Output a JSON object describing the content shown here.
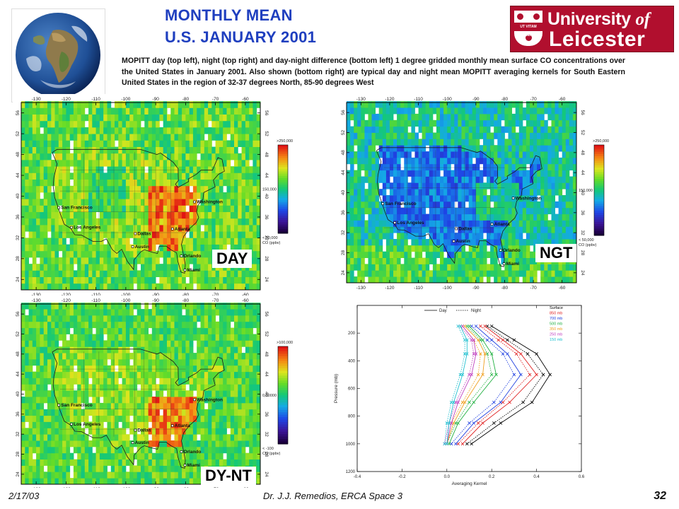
{
  "header": {
    "title_line1": "MONTHLY MEAN",
    "title_line2": "U.S. JANUARY 2001",
    "caption": "MOPITT day (top left), night (top right) and day-night difference (bottom left) 1 degree gridded monthly mean surface CO concentrations over the United States in January 2001. Also shown (bottom right) are typical day and night mean MOPITT averaging kernels for South Eastern United States in the region of 32-37 degrees North, 85-90 degrees West"
  },
  "logo": {
    "line1": "University",
    "line1_of": "of",
    "line2": "Leicester",
    "motto": "UT VITAM HABEANT"
  },
  "maps": [
    {
      "id": "day",
      "label": "DAY",
      "scale_top": ">250,000",
      "scale_mid": "150,000",
      "scale_bottom": "< 50,000",
      "units": "CO (ppbv)",
      "palette": "day"
    },
    {
      "id": "night",
      "label": "NGT",
      "scale_top": ">250,000",
      "scale_mid": "150,000",
      "scale_bottom": "< 50,000",
      "units": "CO (ppbv)",
      "palette": "night"
    },
    {
      "id": "diff",
      "label": "DY-NT",
      "scale_top": ">100,000",
      "scale_mid": "0,00000",
      "scale_bottom": "< -100",
      "units": "CO (ppbv)",
      "palette": "diff"
    }
  ],
  "map_axes": {
    "lon_ticks": [
      "-130",
      "-120",
      "-110",
      "-100",
      "-90",
      "-80",
      "-70",
      "-60"
    ],
    "lat_ticks": [
      "56",
      "52",
      "48",
      "44",
      "40",
      "36",
      "32",
      "28",
      "24"
    ]
  },
  "cities": [
    {
      "name": "San Francisco",
      "lon": -122.4,
      "lat": 37.8
    },
    {
      "name": "Los Angeles",
      "lon": -118.2,
      "lat": 34.0
    },
    {
      "name": "Dallas",
      "lon": -96.8,
      "lat": 32.8
    },
    {
      "name": "Austin",
      "lon": -97.7,
      "lat": 30.3
    },
    {
      "name": "Atlanta",
      "lon": -84.4,
      "lat": 33.7
    },
    {
      "name": "Orlando",
      "lon": -81.4,
      "lat": 28.5
    },
    {
      "name": "Miami",
      "lon": -80.2,
      "lat": 25.8
    },
    {
      "name": "Washington",
      "lon": -77.0,
      "lat": 38.9
    }
  ],
  "chart_data": {
    "type": "line",
    "title": "",
    "xlabel": "Averaging Kernel",
    "ylabel": "Pressure (mb)",
    "xlim": [
      -0.4,
      0.6
    ],
    "ylim": [
      1200,
      0
    ],
    "x_ticks": [
      "-0.4",
      "-0.2",
      "0.0",
      "0.2",
      "0.4",
      "0.6"
    ],
    "y_ticks": [
      "200",
      "400",
      "600",
      "800",
      "1000",
      "1200"
    ],
    "style_legend": [
      {
        "name": "Day",
        "dash": "solid"
      },
      {
        "name": "Night",
        "dash": "dotted"
      }
    ],
    "level_legend_title": "Surface",
    "pressure": [
      150,
      250,
      350,
      500,
      700,
      850,
      1000
    ],
    "series": [
      {
        "name": "Surface",
        "color": "#000000",
        "day": [
          0.2,
          0.3,
          0.4,
          0.46,
          0.38,
          0.24,
          0.11
        ],
        "night": [
          0.18,
          0.27,
          0.36,
          0.43,
          0.34,
          0.21,
          0.09
        ]
      },
      {
        "name": "850 mb",
        "color": "#e02020",
        "day": [
          0.17,
          0.25,
          0.33,
          0.4,
          0.28,
          0.16,
          0.07
        ],
        "night": [
          0.15,
          0.23,
          0.31,
          0.37,
          0.25,
          0.14,
          0.05
        ]
      },
      {
        "name": "700 mb",
        "color": "#2040e0",
        "day": [
          0.13,
          0.2,
          0.27,
          0.33,
          0.24,
          0.12,
          0.04
        ],
        "night": [
          0.11,
          0.18,
          0.25,
          0.3,
          0.21,
          0.1,
          0.02
        ]
      },
      {
        "name": "500 mb",
        "color": "#20b040",
        "day": [
          0.1,
          0.16,
          0.2,
          0.22,
          0.12,
          0.05,
          0.01
        ],
        "night": [
          0.09,
          0.15,
          0.18,
          0.2,
          0.1,
          0.04,
          0.0
        ]
      },
      {
        "name": "350 mb",
        "color": "#f0a020",
        "day": [
          0.08,
          0.14,
          0.17,
          0.16,
          0.08,
          0.03,
          0.0
        ],
        "night": [
          0.07,
          0.12,
          0.15,
          0.14,
          0.07,
          0.02,
          0.0
        ]
      },
      {
        "name": "250 mb",
        "color": "#c040c0",
        "day": [
          0.07,
          0.12,
          0.13,
          0.11,
          0.05,
          0.02,
          0.0
        ],
        "night": [
          0.06,
          0.11,
          0.12,
          0.1,
          0.04,
          0.01,
          -0.01
        ]
      },
      {
        "name": "150 mb",
        "color": "#20c0d0",
        "day": [
          0.06,
          0.09,
          0.09,
          0.07,
          0.03,
          0.01,
          0.0
        ],
        "night": [
          0.05,
          0.08,
          0.08,
          0.06,
          0.02,
          0.0,
          -0.01
        ]
      }
    ]
  },
  "footer": {
    "date": "2/17/03",
    "author": "Dr. J.J. Remedios, ERCA Space 3",
    "page_number": "32"
  }
}
